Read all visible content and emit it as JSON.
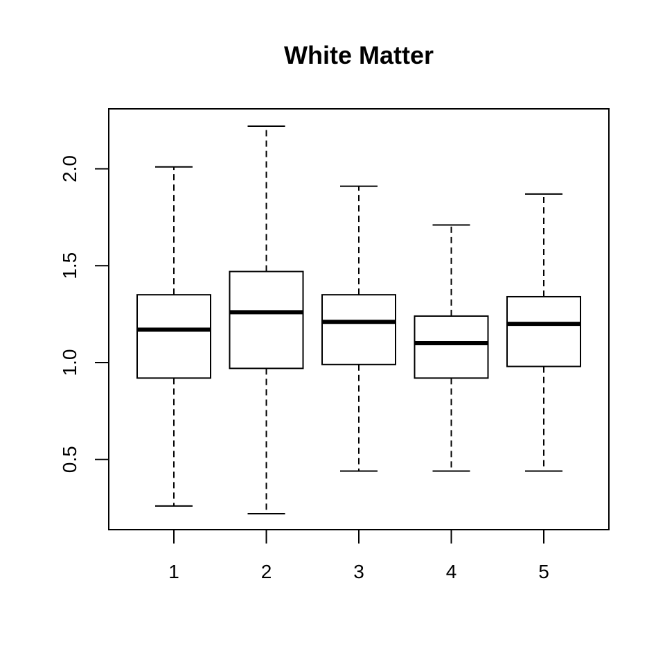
{
  "chart_data": {
    "type": "boxplot",
    "title": "White Matter",
    "xlabel": "",
    "ylabel": "",
    "categories": [
      "1",
      "2",
      "3",
      "4",
      "5"
    ],
    "boxes": [
      {
        "category": "1",
        "whisker_low": 0.26,
        "q1": 0.92,
        "median": 1.17,
        "q3": 1.35,
        "whisker_high": 2.01
      },
      {
        "category": "2",
        "whisker_low": 0.22,
        "q1": 0.97,
        "median": 1.26,
        "q3": 1.47,
        "whisker_high": 2.22
      },
      {
        "category": "3",
        "whisker_low": 0.44,
        "q1": 0.99,
        "median": 1.21,
        "q3": 1.35,
        "whisker_high": 1.91
      },
      {
        "category": "4",
        "whisker_low": 0.44,
        "q1": 0.92,
        "median": 1.1,
        "q3": 1.24,
        "whisker_high": 1.71
      },
      {
        "category": "5",
        "whisker_low": 0.44,
        "q1": 0.98,
        "median": 1.2,
        "q3": 1.34,
        "whisker_high": 1.87
      }
    ],
    "y_ticks": [
      0.5,
      1.0,
      1.5,
      2.0
    ],
    "y_tick_labels": [
      "0.5",
      "1.0",
      "1.5",
      "2.0"
    ],
    "ylim": [
      0.15,
      2.3
    ],
    "grid": false,
    "legend": "none",
    "colors": {
      "box_fill": "#ffffff",
      "stroke": "#000000"
    }
  }
}
